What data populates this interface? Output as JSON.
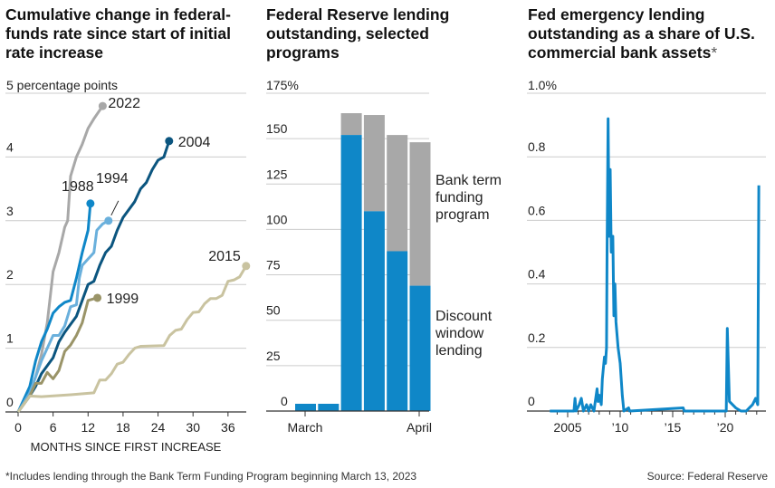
{
  "footnote": "*Includes lending through the Bank Term Funding Program beginning March 13, 2023",
  "source": "Source: Federal Reserve",
  "chart_data": [
    {
      "type": "line",
      "title": "Cumulative change in federal-funds rate since start of initial rate increase",
      "ylabel": "5 percentage points",
      "xlabel": "MONTHS SINCE FIRST INCREASE",
      "xlim": [
        0,
        39
      ],
      "ylim": [
        0,
        5
      ],
      "xticks": [
        "0",
        "6",
        "12",
        "18",
        "24",
        "30",
        "36"
      ],
      "yticks": [
        "0",
        "1",
        "2",
        "3",
        "4"
      ],
      "series": [
        {
          "name": "2022",
          "color": "#a8a8a8",
          "points": [
            [
              0,
              0
            ],
            [
              2,
              0.3
            ],
            [
              3,
              0.55
            ],
            [
              4,
              0.9
            ],
            [
              5,
              1.4
            ],
            [
              6,
              2.2
            ],
            [
              7,
              2.5
            ],
            [
              8,
              2.9
            ],
            [
              8.5,
              3.0
            ],
            [
              9,
              3.7
            ],
            [
              10,
              4.0
            ],
            [
              11,
              4.2
            ],
            [
              12,
              4.45
            ],
            [
              13,
              4.6
            ],
            [
              14.5,
              4.8
            ]
          ]
        },
        {
          "name": "1988",
          "color": "#0f87c8",
          "points": [
            [
              0,
              0
            ],
            [
              2,
              0.4
            ],
            [
              3,
              0.8
            ],
            [
              4,
              1.1
            ],
            [
              5,
              1.3
            ],
            [
              6,
              1.55
            ],
            [
              7,
              1.65
            ],
            [
              8,
              1.72
            ],
            [
              9,
              1.75
            ],
            [
              10,
              2.1
            ],
            [
              11,
              2.5
            ],
            [
              12,
              2.85
            ],
            [
              12.4,
              3.27
            ]
          ]
        },
        {
          "name": "1994",
          "color": "#6ab0dc",
          "points": [
            [
              0,
              0
            ],
            [
              2,
              0.3
            ],
            [
              4,
              0.8
            ],
            [
              5,
              1.0
            ],
            [
              6,
              1.2
            ],
            [
              7,
              1.2
            ],
            [
              8,
              1.35
            ],
            [
              9,
              1.65
            ],
            [
              10,
              1.68
            ],
            [
              10.5,
              2.1
            ],
            [
              11,
              2.3
            ],
            [
              12,
              2.4
            ],
            [
              13,
              2.5
            ],
            [
              13.5,
              2.85
            ],
            [
              14.5,
              2.95
            ],
            [
              15.5,
              3.0
            ]
          ]
        },
        {
          "name": "2004",
          "color": "#0b557f",
          "points": [
            [
              0,
              0
            ],
            [
              2,
              0.25
            ],
            [
              3,
              0.4
            ],
            [
              4,
              0.6
            ],
            [
              6,
              0.85
            ],
            [
              7,
              1.1
            ],
            [
              8,
              1.25
            ],
            [
              10,
              1.5
            ],
            [
              11,
              1.75
            ],
            [
              12,
              2.0
            ],
            [
              13,
              2.05
            ],
            [
              14,
              2.3
            ],
            [
              15,
              2.5
            ],
            [
              16,
              2.6
            ],
            [
              17,
              2.85
            ],
            [
              18,
              3.05
            ],
            [
              20,
              3.3
            ],
            [
              21,
              3.5
            ],
            [
              22,
              3.6
            ],
            [
              23,
              3.8
            ],
            [
              24,
              3.95
            ],
            [
              25,
              4.0
            ],
            [
              25.9,
              4.25
            ]
          ]
        },
        {
          "name": "1999",
          "color": "#9a9468",
          "points": [
            [
              0,
              0
            ],
            [
              2,
              0.25
            ],
            [
              3,
              0.45
            ],
            [
              4,
              0.45
            ],
            [
              5,
              0.62
            ],
            [
              6,
              0.52
            ],
            [
              7,
              0.65
            ],
            [
              8,
              0.95
            ],
            [
              9,
              1.05
            ],
            [
              10,
              1.2
            ],
            [
              11,
              1.4
            ],
            [
              12,
              1.75
            ],
            [
              13.6,
              1.79
            ]
          ]
        },
        {
          "name": "2015",
          "color": "#c9c3a0",
          "points": [
            [
              0,
              0
            ],
            [
              2,
              0.25
            ],
            [
              4,
              0.24
            ],
            [
              9,
              0.27
            ],
            [
              13,
              0.3
            ],
            [
              14,
              0.5
            ],
            [
              15,
              0.5
            ],
            [
              16,
              0.6
            ],
            [
              17,
              0.75
            ],
            [
              18,
              0.78
            ],
            [
              19,
              0.9
            ],
            [
              20,
              1.0
            ],
            [
              21,
              1.03
            ],
            [
              25,
              1.04
            ],
            [
              26,
              1.2
            ],
            [
              27,
              1.28
            ],
            [
              28,
              1.3
            ],
            [
              29,
              1.45
            ],
            [
              30,
              1.56
            ],
            [
              31,
              1.57
            ],
            [
              32,
              1.7
            ],
            [
              33,
              1.78
            ],
            [
              34,
              1.78
            ],
            [
              35,
              1.83
            ],
            [
              36,
              2.05
            ],
            [
              37,
              2.07
            ],
            [
              38,
              2.12
            ],
            [
              39.1,
              2.29
            ]
          ]
        }
      ]
    },
    {
      "type": "bar",
      "stacked": true,
      "title": "Federal Reserve lending outstanding, selected programs",
      "ylabel": "175%",
      "ylim": [
        0,
        175
      ],
      "yticks": [
        "0",
        "25",
        "50",
        "75",
        "100",
        "125",
        "150"
      ],
      "xtick_labels": [
        "March",
        "April"
      ],
      "series": [
        {
          "name": "Discount window lending",
          "color": "#0f87c8",
          "values": [
            4,
            4,
            152,
            110,
            88,
            69
          ]
        },
        {
          "name": "Bank term funding program",
          "color": "#a8a8a8",
          "values": [
            0,
            0,
            12,
            53,
            64,
            79
          ]
        }
      ],
      "legend": [
        "Bank term funding program",
        "Discount window lending"
      ]
    },
    {
      "type": "line",
      "title": "Fed emergency lending outstanding as a share of U.S. commercial bank assets",
      "title_mark": "*",
      "ylabel": "1.0%",
      "ylim": [
        0,
        1.0
      ],
      "xlim": [
        2003,
        2023.5
      ],
      "yticks": [
        "0",
        "0.2",
        "0.4",
        "0.6",
        "0.8"
      ],
      "xticks": [
        {
          "v": 2005,
          "label": "2005"
        },
        {
          "v": 2010,
          "label": "’10"
        },
        {
          "v": 2015,
          "label": "’15"
        },
        {
          "v": 2020,
          "label": "’20"
        }
      ],
      "color": "#0f87c8",
      "points": [
        [
          2003.3,
          0
        ],
        [
          2005.6,
          0
        ],
        [
          2005.7,
          0.04
        ],
        [
          2005.8,
          0
        ],
        [
          2006.1,
          0.02
        ],
        [
          2006.3,
          0.04
        ],
        [
          2006.5,
          0
        ],
        [
          2006.8,
          0.02
        ],
        [
          2007.0,
          0
        ],
        [
          2007.2,
          0.02
        ],
        [
          2007.5,
          0
        ],
        [
          2007.8,
          0.07
        ],
        [
          2007.9,
          0.03
        ],
        [
          2008.0,
          0.05
        ],
        [
          2008.2,
          0.02
        ],
        [
          2008.3,
          0.1
        ],
        [
          2008.5,
          0.17
        ],
        [
          2008.6,
          0.15
        ],
        [
          2008.7,
          0.2
        ],
        [
          2008.75,
          0.5
        ],
        [
          2008.85,
          0.92
        ],
        [
          2008.95,
          0.55
        ],
        [
          2009.05,
          0.76
        ],
        [
          2009.15,
          0.5
        ],
        [
          2009.3,
          0.55
        ],
        [
          2009.4,
          0.3
        ],
        [
          2009.5,
          0.4
        ],
        [
          2009.6,
          0.28
        ],
        [
          2009.8,
          0.2
        ],
        [
          2010.0,
          0.15
        ],
        [
          2010.2,
          0.05
        ],
        [
          2010.35,
          0
        ],
        [
          2010.8,
          0.01
        ],
        [
          2010.9,
          0
        ],
        [
          2016.0,
          0.01
        ],
        [
          2016.1,
          0
        ],
        [
          2020.1,
          0
        ],
        [
          2020.2,
          0.26
        ],
        [
          2020.4,
          0.03
        ],
        [
          2020.7,
          0.02
        ],
        [
          2021.0,
          0.01
        ],
        [
          2021.5,
          0
        ],
        [
          2022.0,
          0
        ],
        [
          2022.3,
          0.01
        ],
        [
          2022.6,
          0.02
        ],
        [
          2022.9,
          0.04
        ],
        [
          2023.1,
          0.02
        ],
        [
          2023.2,
          0.71
        ]
      ]
    }
  ]
}
